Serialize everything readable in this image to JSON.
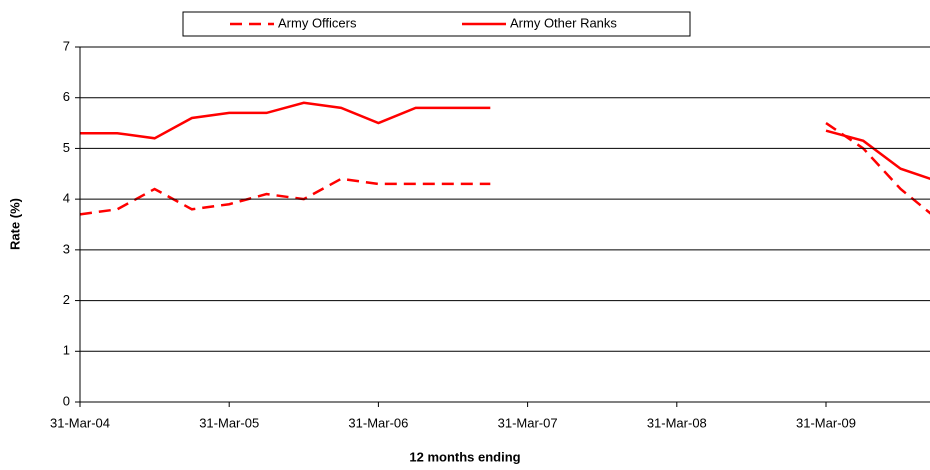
{
  "chart_data": {
    "type": "line",
    "x_label": "12 months ending",
    "y_label": "Rate (%)",
    "categories": [
      "31-Mar-04",
      null,
      null,
      null,
      "31-Mar-05",
      null,
      null,
      null,
      "31-Mar-06",
      null,
      null,
      null,
      "31-Mar-07",
      null,
      null,
      null,
      "31-Mar-08",
      null,
      null,
      null,
      "31-Mar-09",
      null,
      null,
      null
    ],
    "series": [
      {
        "name": "Army Officers",
        "color": "#ff0000",
        "dash": true,
        "values": [
          3.7,
          3.8,
          4.2,
          3.8,
          3.9,
          4.1,
          4.0,
          4.4,
          4.3,
          4.3,
          4.3,
          4.3,
          null,
          null,
          null,
          null,
          null,
          null,
          null,
          null,
          5.5,
          5.0,
          4.2,
          3.6
        ]
      },
      {
        "name": "Army Other Ranks",
        "color": "#ff0000",
        "dash": false,
        "values": [
          5.3,
          5.3,
          5.2,
          5.6,
          5.7,
          5.7,
          5.9,
          5.8,
          5.5,
          5.8,
          5.8,
          5.8,
          null,
          null,
          null,
          null,
          null,
          null,
          null,
          null,
          5.35,
          5.15,
          4.6,
          4.35
        ]
      }
    ],
    "ylim": [
      0,
      7
    ],
    "yticks": [
      0,
      1,
      2,
      3,
      4,
      5,
      6,
      7
    ],
    "grid": true,
    "legend": "top"
  }
}
